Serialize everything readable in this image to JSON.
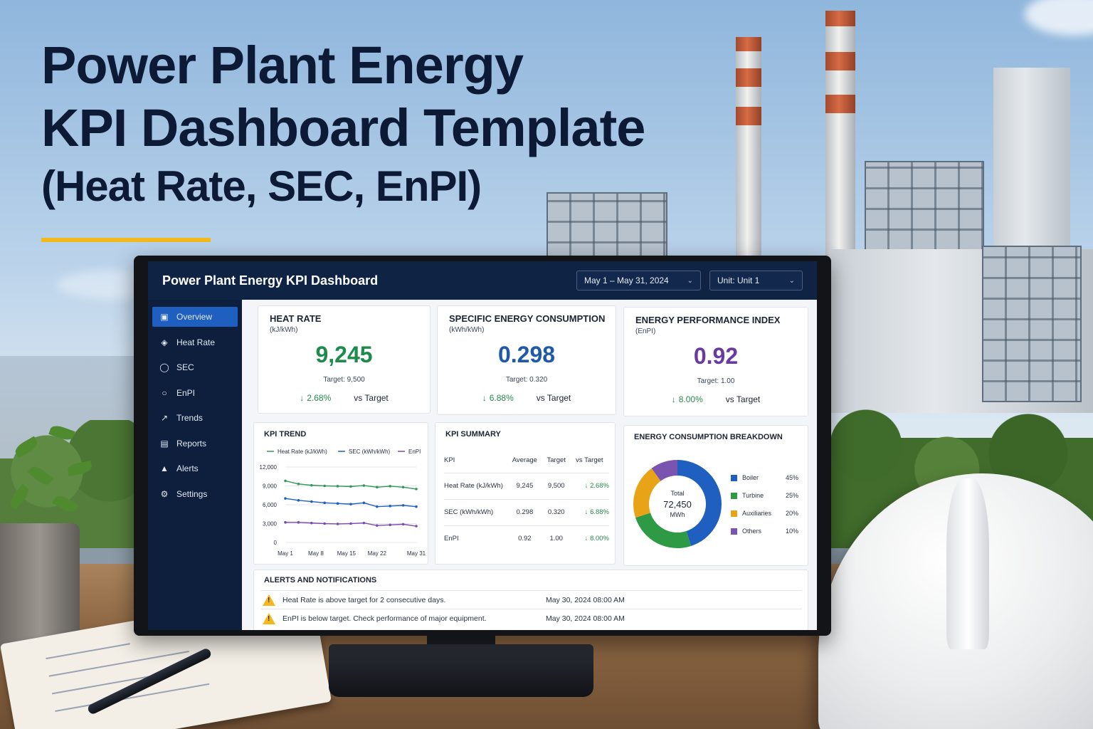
{
  "headline": {
    "line1": "Power Plant Energy",
    "line2": "KPI Dashboard Template",
    "line3": "(Heat Rate, SEC, EnPI)"
  },
  "dashboard": {
    "title": "Power Plant Energy KPI Dashboard",
    "date_range": "May 1 – May 31, 2024",
    "unit": "Unit: Unit 1"
  },
  "sidebar": {
    "items": [
      {
        "label": "Overview",
        "icon": "dashboard-icon",
        "active": true
      },
      {
        "label": "Heat Rate",
        "icon": "flame-icon"
      },
      {
        "label": "SEC",
        "icon": "gauge-icon"
      },
      {
        "label": "EnPI",
        "icon": "leaf-icon"
      },
      {
        "label": "Trends",
        "icon": "line-chart-icon"
      },
      {
        "label": "Reports",
        "icon": "report-icon"
      },
      {
        "label": "Alerts",
        "icon": "bell-icon"
      },
      {
        "label": "Settings",
        "icon": "gear-icon"
      }
    ]
  },
  "kpis": [
    {
      "title": "HEAT RATE",
      "unit": "(kJ/kWh)",
      "value": "9,245",
      "target": "Target: 9,500",
      "delta": "2.68%",
      "vs": "vs Target",
      "color": "#1e8a4c"
    },
    {
      "title": "SPECIFIC ENERGY CONSUMPTION",
      "unit": "(kWh/kWh)",
      "value": "0.298",
      "target": "Target: 0.320",
      "delta": "6.88%",
      "vs": "vs Target",
      "color": "#1f5aa8"
    },
    {
      "title": "ENERGY PERFORMANCE INDEX",
      "unit": "(EnPI)",
      "value": "0.92",
      "target": "Target: 1.00",
      "delta": "8.00%",
      "vs": "vs Target",
      "color": "#6a3aa0"
    }
  ],
  "trend": {
    "title": "KPI TREND",
    "legend": [
      "Heat Rate (kJ/kWh)",
      "SEC (kWh/kWh)",
      "EnPI"
    ],
    "y_ticks": [
      "12,000",
      "9,000",
      "6,000",
      "3,000",
      "0"
    ],
    "x_ticks": [
      "May 1",
      "May 8",
      "May 15",
      "May 22",
      "May 31"
    ]
  },
  "summary": {
    "title": "KPI SUMMARY",
    "headers": [
      "KPI",
      "Average",
      "Target",
      "vs Target"
    ],
    "rows": [
      {
        "kpi": "Heat Rate (kJ/kWh)",
        "avg": "9,245",
        "target": "9,500",
        "vs": "2.68%"
      },
      {
        "kpi": "SEC (kWh/kWh)",
        "avg": "0.298",
        "target": "0.320",
        "vs": "6.88%"
      },
      {
        "kpi": "EnPI",
        "avg": "0.92",
        "target": "1.00",
        "vs": "8.00%"
      }
    ]
  },
  "breakdown": {
    "title": "ENERGY CONSUMPTION BREAKDOWN",
    "center_label": "Total",
    "center_value": "72,450",
    "center_unit": "MWh",
    "items": [
      {
        "label": "Boiler",
        "pct": "45%",
        "value": 45,
        "color": "#1f5fbf"
      },
      {
        "label": "Turbine",
        "pct": "25%",
        "value": 25,
        "color": "#2e9a46"
      },
      {
        "label": "Auxiliaries",
        "pct": "20%",
        "value": 20,
        "color": "#e8a317"
      },
      {
        "label": "Others",
        "pct": "10%",
        "value": 10,
        "color": "#7a55b0"
      }
    ]
  },
  "alerts": {
    "title": "ALERTS AND NOTIFICATIONS",
    "items": [
      {
        "message": "Heat Rate is above target for 2 consecutive days.",
        "time": "May 30, 2024 08:00 AM"
      },
      {
        "message": "EnPI is below target. Check performance of major equipment.",
        "time": "May 30, 2024 08:00 AM"
      }
    ]
  },
  "chart_data": {
    "type": "line",
    "title": "KPI TREND",
    "x": [
      "May 1",
      "May 4",
      "May 7",
      "May 10",
      "May 13",
      "May 16",
      "May 19",
      "May 22",
      "May 25",
      "May 28",
      "May 31"
    ],
    "ylim": [
      0,
      12000
    ],
    "y_ticks": [
      0,
      3000,
      6000,
      9000,
      12000
    ],
    "series": [
      {
        "name": "Heat Rate (kJ/kWh)",
        "color": "#2e9a5a",
        "values": [
          9800,
          9300,
          9100,
          9000,
          8950,
          8900,
          9050,
          8800,
          8950,
          8800,
          8500
        ]
      },
      {
        "name": "SEC (kWh/kWh)",
        "color": "#1f5fbf",
        "values": [
          7000,
          6700,
          6500,
          6300,
          6200,
          6100,
          6300,
          5700,
          5800,
          5900,
          5700
        ]
      },
      {
        "name": "EnPI",
        "color": "#7a4bb0",
        "values": [
          3200,
          3200,
          3100,
          3000,
          2950,
          3000,
          3100,
          2700,
          2800,
          2900,
          2600
        ]
      }
    ],
    "grid": true,
    "legend": "top"
  }
}
